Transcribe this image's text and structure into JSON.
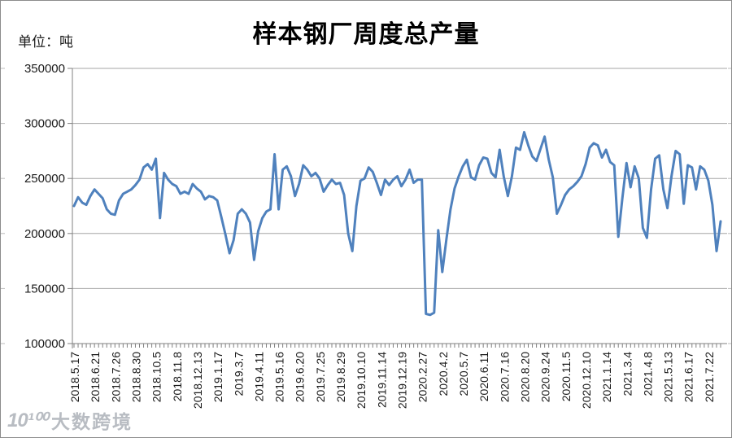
{
  "title": "样本钢厂周度总产量",
  "unit_label": "单位：吨",
  "watermark": {
    "logo_glyph": "10¹⁰⁰",
    "text": "大数跨境"
  },
  "chart_data": {
    "type": "line",
    "title": "样本钢厂周度总产量",
    "ylabel": "单位：吨",
    "ylim": [
      100000,
      350000
    ],
    "ytick_interval": 50000,
    "yticks": [
      350000,
      300000,
      250000,
      200000,
      150000,
      100000
    ],
    "grid": true,
    "legend_position": "none",
    "line_color": "#4F81BD",
    "grid_color": "#A6A6A6",
    "axis_color": "#808080",
    "x_label_every": 5,
    "x_labels": [
      "2018.5.17",
      "2018.6.21",
      "2018.7.26",
      "2018.8.30",
      "2018.10.5",
      "2018.11.8",
      "2018.12.13",
      "2019.1.17",
      "2019.3.7",
      "2019.4.11",
      "2019.5.16",
      "2019.6.20",
      "2019.7.25",
      "2019.8.29",
      "2019.10.10",
      "2019.11.14",
      "2019.12.19",
      "2020.2.27",
      "2020.4.2",
      "2020.5.7",
      "2020.6.11",
      "2020.7.16",
      "2020.8.20",
      "2020.9.24",
      "2020.11.5",
      "2020.12.10",
      "2021.1.14",
      "2021.3.4",
      "2021.4.8",
      "2021.5.13",
      "2021.6.17",
      "2021.7.22"
    ],
    "values": [
      225000,
      233000,
      228000,
      226000,
      234000,
      240000,
      236000,
      232000,
      222000,
      218000,
      217000,
      230000,
      236000,
      238000,
      240000,
      244000,
      249000,
      260000,
      263000,
      258000,
      268000,
      214000,
      255000,
      249000,
      245000,
      243000,
      236000,
      238000,
      236000,
      245000,
      241000,
      238000,
      231000,
      234000,
      233000,
      230000,
      215000,
      199000,
      182000,
      194000,
      218000,
      222000,
      218000,
      210000,
      176000,
      202000,
      214000,
      220000,
      222000,
      272000,
      222000,
      258000,
      261000,
      252000,
      234000,
      245000,
      262000,
      258000,
      252000,
      255000,
      250000,
      238000,
      244000,
      249000,
      245000,
      246000,
      235000,
      200000,
      184000,
      225000,
      248000,
      250000,
      260000,
      256000,
      246000,
      235000,
      249000,
      244000,
      249000,
      252000,
      243000,
      249000,
      258000,
      246000,
      249000,
      249000,
      127000,
      126000,
      128000,
      203000,
      165000,
      195000,
      222000,
      241000,
      252000,
      261000,
      267000,
      251000,
      249000,
      262000,
      269000,
      268000,
      255000,
      251000,
      276000,
      252000,
      234000,
      252000,
      278000,
      276000,
      292000,
      280000,
      270000,
      266000,
      277000,
      288000,
      267000,
      251000,
      218000,
      226000,
      235000,
      240000,
      243000,
      247000,
      252000,
      263000,
      278000,
      282000,
      280000,
      269000,
      276000,
      265000,
      262000,
      197000,
      232000,
      264000,
      242000,
      261000,
      250000,
      205000,
      196000,
      240000,
      268000,
      271000,
      240000,
      223000,
      252000,
      275000,
      272000,
      227000,
      262000,
      260000,
      240000,
      261000,
      258000,
      248000,
      226000,
      184000,
      211000
    ]
  }
}
